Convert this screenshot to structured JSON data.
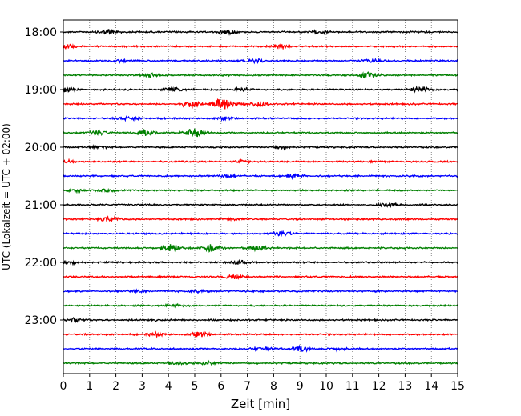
{
  "chart_data": {
    "type": "line",
    "title": "",
    "xlabel": "Zeit  [min]",
    "ylabel": "UTC (Lokalzeit = UTC + 02:00)",
    "xlim": [
      0,
      15
    ],
    "x_ticks": [
      "0",
      "1",
      "2",
      "3",
      "4",
      "5",
      "6",
      "7",
      "8",
      "9",
      "10",
      "11",
      "12",
      "13",
      "14",
      "15"
    ],
    "y_tick_labels": [
      "18:00",
      "19:00",
      "20:00",
      "21:00",
      "22:00",
      "23:00"
    ],
    "grid": "vertical dotted",
    "trace_interval_minutes": 15,
    "trace_colors": [
      "#000000",
      "#ff0000",
      "#0000ff",
      "#008000"
    ],
    "traces": [
      {
        "time": "18:00",
        "color": "#000000",
        "events": [
          [
            1.7,
            0.4
          ],
          [
            6.2,
            0.3
          ],
          [
            9.8,
            0.2
          ]
        ]
      },
      {
        "time": "18:15",
        "color": "#ff0000",
        "events": [
          [
            0.1,
            0.3
          ],
          [
            8.3,
            0.3
          ]
        ]
      },
      {
        "time": "18:30",
        "color": "#0000ff",
        "events": [
          [
            2.1,
            0.2
          ],
          [
            7.3,
            0.3
          ],
          [
            11.7,
            0.2
          ]
        ]
      },
      {
        "time": "18:45",
        "color": "#008000",
        "events": [
          [
            3.3,
            0.3
          ],
          [
            11.6,
            0.4
          ]
        ]
      },
      {
        "time": "19:00",
        "color": "#000000",
        "events": [
          [
            0.1,
            0.4
          ],
          [
            4.2,
            0.3
          ],
          [
            6.8,
            0.3
          ],
          [
            13.6,
            0.5
          ]
        ]
      },
      {
        "time": "19:15",
        "color": "#ff0000",
        "events": [
          [
            4.8,
            0.5
          ],
          [
            6.1,
            1.2
          ],
          [
            7.4,
            0.4
          ]
        ]
      },
      {
        "time": "19:30",
        "color": "#0000ff",
        "events": [
          [
            2.5,
            0.3
          ],
          [
            6.1,
            0.2
          ]
        ]
      },
      {
        "time": "19:45",
        "color": "#008000",
        "events": [
          [
            1.3,
            0.4
          ],
          [
            3.1,
            0.6
          ],
          [
            5.0,
            0.7
          ]
        ]
      },
      {
        "time": "20:00",
        "color": "#000000",
        "events": [
          [
            1.3,
            0.2
          ],
          [
            8.3,
            0.2
          ]
        ]
      },
      {
        "time": "20:15",
        "color": "#ff0000",
        "events": [
          [
            0.1,
            0.2
          ],
          [
            6.8,
            0.2
          ]
        ]
      },
      {
        "time": "20:30",
        "color": "#0000ff",
        "events": [
          [
            6.2,
            0.2
          ],
          [
            8.8,
            0.3
          ]
        ]
      },
      {
        "time": "20:45",
        "color": "#008000",
        "events": [
          [
            0.5,
            0.2
          ],
          [
            1.6,
            0.2
          ]
        ]
      },
      {
        "time": "21:00",
        "color": "#000000",
        "events": [
          [
            12.4,
            0.3
          ]
        ]
      },
      {
        "time": "21:15",
        "color": "#ff0000",
        "events": [
          [
            1.8,
            0.4
          ],
          [
            6.3,
            0.2
          ]
        ]
      },
      {
        "time": "21:30",
        "color": "#0000ff",
        "events": [
          [
            8.3,
            0.4
          ]
        ]
      },
      {
        "time": "21:45",
        "color": "#008000",
        "events": [
          [
            4.1,
            0.6
          ],
          [
            5.6,
            0.6
          ],
          [
            7.4,
            0.4
          ]
        ]
      },
      {
        "time": "22:00",
        "color": "#000000",
        "events": [
          [
            0.3,
            0.2
          ],
          [
            6.7,
            0.3
          ]
        ]
      },
      {
        "time": "22:15",
        "color": "#ff0000",
        "events": [
          [
            6.5,
            0.3
          ]
        ]
      },
      {
        "time": "22:30",
        "color": "#0000ff",
        "events": [
          [
            2.8,
            0.2
          ],
          [
            5.1,
            0.2
          ]
        ]
      },
      {
        "time": "22:45",
        "color": "#008000",
        "events": [
          [
            4.3,
            0.2
          ]
        ]
      },
      {
        "time": "23:00",
        "color": "#000000",
        "events": [
          [
            0.5,
            0.3
          ],
          [
            3.3,
            0.2
          ]
        ]
      },
      {
        "time": "23:15",
        "color": "#ff0000",
        "events": [
          [
            3.5,
            0.3
          ],
          [
            5.2,
            0.4
          ]
        ]
      },
      {
        "time": "23:30",
        "color": "#0000ff",
        "events": [
          [
            7.6,
            0.3
          ],
          [
            9.0,
            0.4
          ],
          [
            10.5,
            0.2
          ]
        ]
      },
      {
        "time": "23:45",
        "color": "#008000",
        "events": [
          [
            4.3,
            0.3
          ],
          [
            5.6,
            0.3
          ]
        ]
      }
    ]
  }
}
